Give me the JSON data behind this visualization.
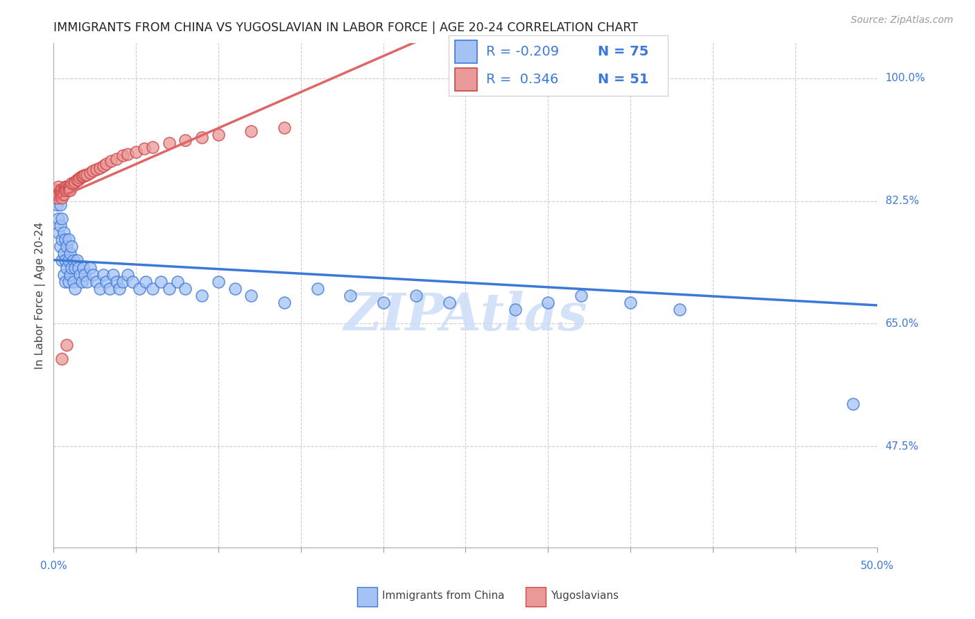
{
  "title": "IMMIGRANTS FROM CHINA VS YUGOSLAVIAN IN LABOR FORCE | AGE 20-24 CORRELATION CHART",
  "source_text": "Source: ZipAtlas.com",
  "ylabel": "In Labor Force | Age 20-24",
  "right_yticks": [
    1.0,
    0.825,
    0.65,
    0.475
  ],
  "right_yticklabels": [
    "100.0%",
    "82.5%",
    "65.0%",
    "47.5%"
  ],
  "blue_face": "#a4c2f4",
  "blue_edge": "#3c78d8",
  "pink_face": "#ea9999",
  "pink_edge": "#cc4444",
  "blue_line": "#3c78d8",
  "pink_line": "#e06666",
  "label_color": "#3c78d8",
  "watermark": "ZIPAtlas",
  "watermark_color": "#c9daf8",
  "xmin": 0.0,
  "xmax": 0.5,
  "ymin": 0.33,
  "ymax": 1.05,
  "china_x": [
    0.002,
    0.002,
    0.003,
    0.003,
    0.003,
    0.004,
    0.004,
    0.004,
    0.005,
    0.005,
    0.005,
    0.006,
    0.006,
    0.006,
    0.007,
    0.007,
    0.007,
    0.008,
    0.008,
    0.009,
    0.009,
    0.009,
    0.01,
    0.01,
    0.011,
    0.011,
    0.012,
    0.012,
    0.013,
    0.013,
    0.014,
    0.015,
    0.016,
    0.017,
    0.018,
    0.019,
    0.02,
    0.022,
    0.024,
    0.026,
    0.028,
    0.03,
    0.032,
    0.034,
    0.036,
    0.038,
    0.04,
    0.042,
    0.045,
    0.048,
    0.052,
    0.056,
    0.06,
    0.065,
    0.07,
    0.075,
    0.08,
    0.09,
    0.1,
    0.11,
    0.12,
    0.14,
    0.16,
    0.18,
    0.2,
    0.22,
    0.24,
    0.28,
    0.3,
    0.32,
    0.35,
    0.38,
    0.29,
    0.295,
    0.485
  ],
  "china_y": [
    0.84,
    0.82,
    0.83,
    0.8,
    0.78,
    0.82,
    0.79,
    0.76,
    0.8,
    0.77,
    0.74,
    0.78,
    0.75,
    0.72,
    0.77,
    0.74,
    0.71,
    0.76,
    0.73,
    0.77,
    0.74,
    0.71,
    0.75,
    0.72,
    0.76,
    0.73,
    0.74,
    0.71,
    0.73,
    0.7,
    0.74,
    0.73,
    0.72,
    0.71,
    0.73,
    0.72,
    0.71,
    0.73,
    0.72,
    0.71,
    0.7,
    0.72,
    0.71,
    0.7,
    0.72,
    0.71,
    0.7,
    0.71,
    0.72,
    0.71,
    0.7,
    0.71,
    0.7,
    0.71,
    0.7,
    0.71,
    0.7,
    0.69,
    0.71,
    0.7,
    0.69,
    0.68,
    0.7,
    0.69,
    0.68,
    0.69,
    0.68,
    0.67,
    0.68,
    0.69,
    0.68,
    0.67,
    1.0,
    0.995,
    0.535
  ],
  "yugo_x": [
    0.001,
    0.002,
    0.002,
    0.003,
    0.003,
    0.004,
    0.004,
    0.005,
    0.005,
    0.005,
    0.006,
    0.006,
    0.007,
    0.007,
    0.008,
    0.008,
    0.009,
    0.009,
    0.01,
    0.01,
    0.011,
    0.012,
    0.013,
    0.014,
    0.015,
    0.016,
    0.017,
    0.018,
    0.019,
    0.02,
    0.022,
    0.024,
    0.026,
    0.028,
    0.03,
    0.032,
    0.035,
    0.038,
    0.042,
    0.045,
    0.05,
    0.055,
    0.06,
    0.07,
    0.08,
    0.09,
    0.1,
    0.12,
    0.14,
    0.005,
    0.008
  ],
  "yugo_y": [
    0.835,
    0.84,
    0.83,
    0.845,
    0.835,
    0.84,
    0.835,
    0.84,
    0.835,
    0.83,
    0.84,
    0.835,
    0.845,
    0.84,
    0.845,
    0.84,
    0.845,
    0.84,
    0.845,
    0.84,
    0.85,
    0.85,
    0.852,
    0.855,
    0.855,
    0.858,
    0.86,
    0.86,
    0.862,
    0.862,
    0.865,
    0.868,
    0.87,
    0.872,
    0.875,
    0.878,
    0.882,
    0.885,
    0.89,
    0.892,
    0.895,
    0.9,
    0.902,
    0.908,
    0.912,
    0.916,
    0.92,
    0.925,
    0.93,
    0.6,
    0.62
  ]
}
